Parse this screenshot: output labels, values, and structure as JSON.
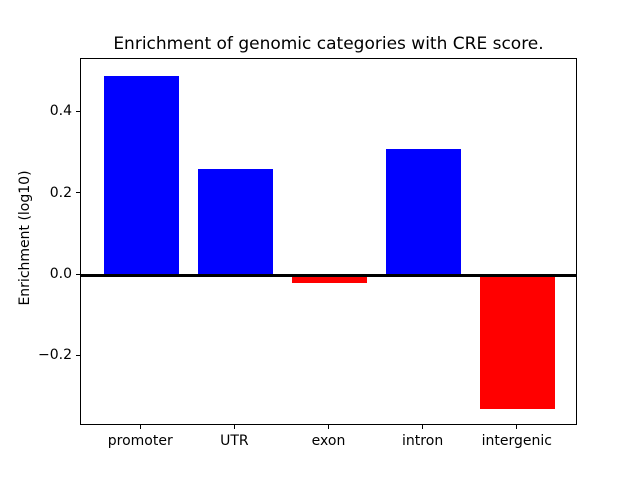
{
  "figure": {
    "title": "Enrichment of genomic categories with CRE score.",
    "ylabel": "Enrichment (log10)"
  },
  "chart_data": {
    "type": "bar",
    "title": "Enrichment of genomic categories with CRE score.",
    "xlabel": "",
    "ylabel": "Enrichment (log10)",
    "categories": [
      "promoter",
      "UTR",
      "exon",
      "intron",
      "intergenic"
    ],
    "values": [
      0.49,
      0.26,
      -0.02,
      0.31,
      -0.33
    ],
    "bar_colors": [
      "#0000ff",
      "#0000ff",
      "#ff0000",
      "#0000ff",
      "#ff0000"
    ],
    "positive_color": "#0000ff",
    "negative_color": "#ff0000",
    "ylim": [
      -0.371,
      0.531
    ],
    "yticks": [
      0.4,
      0.2,
      0.0,
      -0.2
    ],
    "ytick_labels": [
      "0.4",
      "0.2",
      "0.0",
      "−0.2"
    ],
    "zero_line": true,
    "grid": false,
    "legend_position": "none"
  }
}
